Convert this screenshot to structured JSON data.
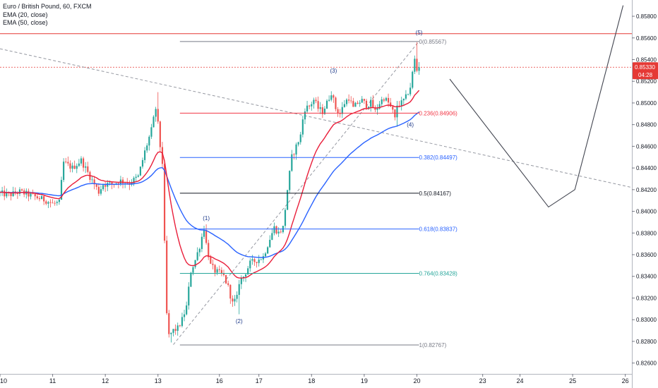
{
  "legend": {
    "symbol": "Euro / British Pound, 60, FXCM",
    "ema_fast": "EMA (20, close)",
    "ema_slow": "EMA (50, close)"
  },
  "price_tag": {
    "value": "0.85330",
    "countdown": "04:28"
  },
  "chart_data": {
    "type": "candlestick",
    "title": "Euro / British Pound, 60, FXCM",
    "ylim": [
      0.825,
      0.8595
    ],
    "y_ticks": [
      "0.82600",
      "0.82800",
      "0.83000",
      "0.83200",
      "0.83400",
      "0.83600",
      "0.83800",
      "0.84000",
      "0.84200",
      "0.84400",
      "0.84600",
      "0.84800",
      "0.85000",
      "0.85200",
      "0.85400",
      "0.85600",
      "0.85800"
    ],
    "x_labels": [
      {
        "label": "10",
        "slot": 0
      },
      {
        "label": "11",
        "slot": 24
      },
      {
        "label": "12",
        "slot": 48
      },
      {
        "label": "13",
        "slot": 72
      },
      {
        "label": "16",
        "slot": 100
      },
      {
        "label": "17",
        "slot": 118
      },
      {
        "label": "18",
        "slot": 142
      },
      {
        "label": "19",
        "slot": 166
      },
      {
        "label": "20",
        "slot": 190
      },
      {
        "label": "23",
        "slot": 220
      },
      {
        "label": "24",
        "slot": 237
      },
      {
        "label": "25",
        "slot": 261
      },
      {
        "label": "26",
        "slot": 285
      }
    ],
    "slot_range": [
      0,
      288
    ],
    "price_path": [
      [
        0,
        0.8417
      ],
      [
        5,
        0.8415
      ],
      [
        10,
        0.8418
      ],
      [
        16,
        0.8414
      ],
      [
        22,
        0.841
      ],
      [
        25,
        0.8407
      ],
      [
        28,
        0.8408
      ],
      [
        30,
        0.8445
      ],
      [
        34,
        0.844
      ],
      [
        38,
        0.8447
      ],
      [
        42,
        0.8432
      ],
      [
        46,
        0.8418
      ],
      [
        48,
        0.8425
      ],
      [
        52,
        0.8425
      ],
      [
        56,
        0.8428
      ],
      [
        60,
        0.8426
      ],
      [
        64,
        0.8432
      ],
      [
        67,
        0.8455
      ],
      [
        70,
        0.8475
      ],
      [
        72,
        0.8495
      ],
      [
        73,
        0.848
      ],
      [
        74,
        0.846
      ],
      [
        75,
        0.8445
      ],
      [
        76,
        0.837
      ],
      [
        77,
        0.8305
      ],
      [
        78,
        0.8285
      ],
      [
        80,
        0.829
      ],
      [
        82,
        0.8292
      ],
      [
        84,
        0.83
      ],
      [
        86,
        0.8312
      ],
      [
        88,
        0.8345
      ],
      [
        90,
        0.8355
      ],
      [
        92,
        0.8368
      ],
      [
        94,
        0.8385
      ],
      [
        95,
        0.837
      ],
      [
        97,
        0.835
      ],
      [
        99,
        0.8345
      ],
      [
        101,
        0.8343
      ],
      [
        103,
        0.834
      ],
      [
        105,
        0.833
      ],
      [
        107,
        0.8315
      ],
      [
        109,
        0.832
      ],
      [
        110,
        0.8335
      ],
      [
        112,
        0.834
      ],
      [
        115,
        0.8352
      ],
      [
        118,
        0.8355
      ],
      [
        121,
        0.8358
      ],
      [
        124,
        0.8375
      ],
      [
        126,
        0.8385
      ],
      [
        128,
        0.838
      ],
      [
        130,
        0.8385
      ],
      [
        132,
        0.842
      ],
      [
        134,
        0.845
      ],
      [
        136,
        0.846
      ],
      [
        138,
        0.847
      ],
      [
        139,
        0.8485
      ],
      [
        140,
        0.8495
      ],
      [
        142,
        0.8497
      ],
      [
        144,
        0.8503
      ],
      [
        146,
        0.8495
      ],
      [
        148,
        0.8492
      ],
      [
        150,
        0.85
      ],
      [
        152,
        0.851
      ],
      [
        154,
        0.8495
      ],
      [
        156,
        0.849
      ],
      [
        158,
        0.85
      ],
      [
        160,
        0.8505
      ],
      [
        162,
        0.8495
      ],
      [
        164,
        0.85
      ],
      [
        166,
        0.8502
      ],
      [
        168,
        0.8498
      ],
      [
        170,
        0.85
      ],
      [
        172,
        0.8492
      ],
      [
        174,
        0.85
      ],
      [
        176,
        0.8505
      ],
      [
        178,
        0.85
      ],
      [
        180,
        0.8492
      ],
      [
        181,
        0.8485
      ],
      [
        182,
        0.8498
      ],
      [
        184,
        0.85
      ],
      [
        186,
        0.8505
      ],
      [
        188,
        0.8515
      ],
      [
        190,
        0.854
      ],
      [
        191,
        0.853
      ]
    ],
    "fib_levels": [
      {
        "label": "0(0.85567)",
        "price": 0.85567,
        "color": "#787b86"
      },
      {
        "label": "0.236(0.84906)",
        "price": 0.84906,
        "color": "#f23645"
      },
      {
        "label": "0.382(0.84497)",
        "price": 0.84497,
        "color": "#2962ff"
      },
      {
        "label": "0.5(0.84167)",
        "price": 0.84167,
        "color": "#131722"
      },
      {
        "label": "0.618(0.83837)",
        "price": 0.83837,
        "color": "#2962ff"
      },
      {
        "label": "0.764(0.83428)",
        "price": 0.83428,
        "color": "#26a69a"
      },
      {
        "label": "1(0.82767)",
        "price": 0.82767,
        "color": "#787b86"
      }
    ],
    "waves": [
      {
        "label": "(1)",
        "slot": 94,
        "price": 0.8392
      },
      {
        "label": "(2)",
        "slot": 109,
        "price": 0.8297
      },
      {
        "label": "(3)",
        "slot": 152,
        "price": 0.8528
      },
      {
        "label": "(4)",
        "slot": 187,
        "price": 0.8478
      },
      {
        "label": "(5)",
        "slot": 191,
        "price": 0.8563
      }
    ],
    "resistance_price": 0.8562,
    "current_price": 0.8533
  }
}
